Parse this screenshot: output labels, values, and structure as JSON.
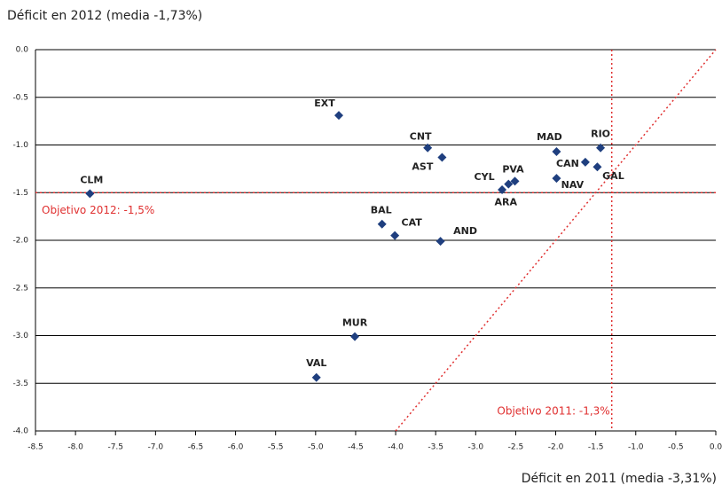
{
  "chart_data": {
    "type": "scatter",
    "y_label": "Déficit en 2012 (media -1,73%)",
    "x_label": "Déficit en 2011 (media -3,31%)",
    "labels": [
      "EXT",
      "CNT",
      "AST",
      "MAD",
      "RIO",
      "CAN",
      "GAL",
      "NAV",
      "PVA",
      "CYL",
      "ARA",
      "CLM",
      "BAL",
      "CAT",
      "AND",
      "MUR",
      "VAL"
    ],
    "x": [
      -4.71,
      -3.6,
      -3.42,
      -1.99,
      -1.44,
      -1.63,
      -1.48,
      -1.99,
      -2.51,
      -2.67,
      -2.59,
      -7.82,
      -4.17,
      -4.01,
      -3.44,
      -4.51,
      -4.99
    ],
    "values": [
      -0.69,
      -1.03,
      -1.13,
      -1.07,
      -1.03,
      -1.18,
      -1.23,
      -1.35,
      -1.38,
      -1.47,
      -1.41,
      -1.51,
      -1.83,
      -1.95,
      -2.01,
      -3.01,
      -3.44
    ],
    "color": "#1f3f7f",
    "xlim": [
      -8.5,
      0
    ],
    "ylim": [
      -4,
      0
    ],
    "xticks": [
      -8.5,
      {
        "value": -8,
        "label": "-8.0"
      },
      -7.5,
      {
        "value": -7,
        "label": "-7.0"
      },
      -6.5,
      {
        "value": -6,
        "label": "-6.0"
      },
      -5.5,
      {
        "value": -5,
        "label": "-5.0"
      },
      -4.5,
      {
        "value": -4,
        "label": "-4.0"
      },
      -3.5,
      {
        "value": -3,
        "label": "-3.0"
      },
      -2.5,
      {
        "value": -2,
        "label": "-2.0"
      },
      -1.5,
      {
        "value": -1,
        "label": "-1.0"
      },
      -0.5,
      {
        "value": 0,
        "label": "0.0"
      }
    ],
    "yticks": [
      {
        "value": 0,
        "label": "0.0"
      },
      -0.5,
      {
        "value": -1,
        "label": "-1.0"
      },
      -1.5,
      {
        "value": -2,
        "label": "-2.0"
      },
      -2.5,
      {
        "value": -3,
        "label": "-3.0"
      },
      -3.5,
      {
        "value": -4,
        "label": "-4.0"
      }
    ],
    "grid": true,
    "reference_lines": [
      {
        "axis": "y",
        "value": -1.5,
        "label": "Objetivo 2012: -1,5%",
        "color": "#e03030"
      },
      {
        "axis": "x",
        "value": -1.3,
        "label": "Objetivo 2011: -1,3%",
        "color": "#e03030"
      }
    ],
    "diagonal": true
  }
}
